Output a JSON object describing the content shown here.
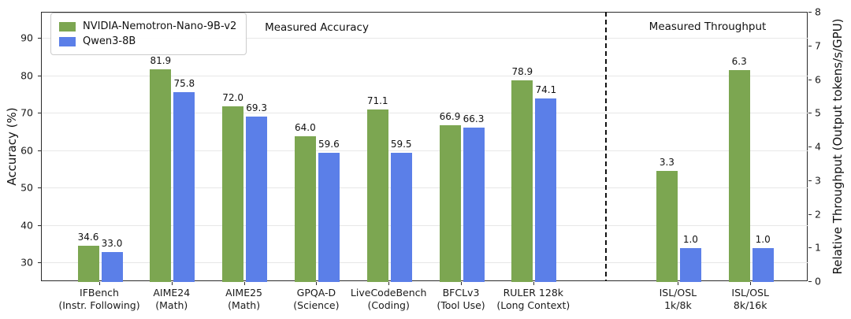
{
  "chart_data": {
    "type": "bar",
    "section_titles": {
      "accuracy": "Measured Accuracy",
      "throughput": "Measured Throughput"
    },
    "left_axis": {
      "label": "Accuracy (%)",
      "range": [
        25,
        97
      ],
      "ticks": [
        30,
        40,
        50,
        60,
        70,
        80,
        90
      ]
    },
    "right_axis": {
      "label": "Relative Throughput (Output tokens/s/GPU)",
      "range": [
        0,
        8
      ],
      "ticks": [
        0,
        1,
        2,
        3,
        4,
        5,
        6,
        7,
        8
      ]
    },
    "series": [
      {
        "name": "NVIDIA-Nemotron-Nano-9B-v2",
        "color": "#7CA651"
      },
      {
        "name": "Qwen3-8B",
        "color": "#5B7FE8"
      }
    ],
    "groups": [
      {
        "label": [
          "IFBench",
          "(Instr. Following)"
        ],
        "section": "accuracy",
        "values": [
          34.6,
          33.0
        ]
      },
      {
        "label": [
          "AIME24",
          "(Math)"
        ],
        "section": "accuracy",
        "values": [
          81.9,
          75.8
        ]
      },
      {
        "label": [
          "AIME25",
          "(Math)"
        ],
        "section": "accuracy",
        "values": [
          72.0,
          69.3
        ]
      },
      {
        "label": [
          "GPQA-D",
          "(Science)"
        ],
        "section": "accuracy",
        "values": [
          64.0,
          59.6
        ]
      },
      {
        "label": [
          "LiveCodeBench",
          "(Coding)"
        ],
        "section": "accuracy",
        "values": [
          71.1,
          59.5
        ]
      },
      {
        "label": [
          "BFCLv3",
          "(Tool Use)"
        ],
        "section": "accuracy",
        "values": [
          66.9,
          66.3
        ]
      },
      {
        "label": [
          "RULER 128k",
          "(Long Context)"
        ],
        "section": "accuracy",
        "values": [
          78.9,
          74.1
        ]
      },
      {
        "label": [
          "ISL/OSL",
          "1k/8k"
        ],
        "section": "throughput",
        "values": [
          3.3,
          1.0
        ]
      },
      {
        "label": [
          "ISL/OSL",
          "8k/16k"
        ],
        "section": "throughput",
        "values": [
          6.3,
          1.0
        ]
      }
    ],
    "legend_position": "upper left",
    "grid": "horizontal"
  }
}
